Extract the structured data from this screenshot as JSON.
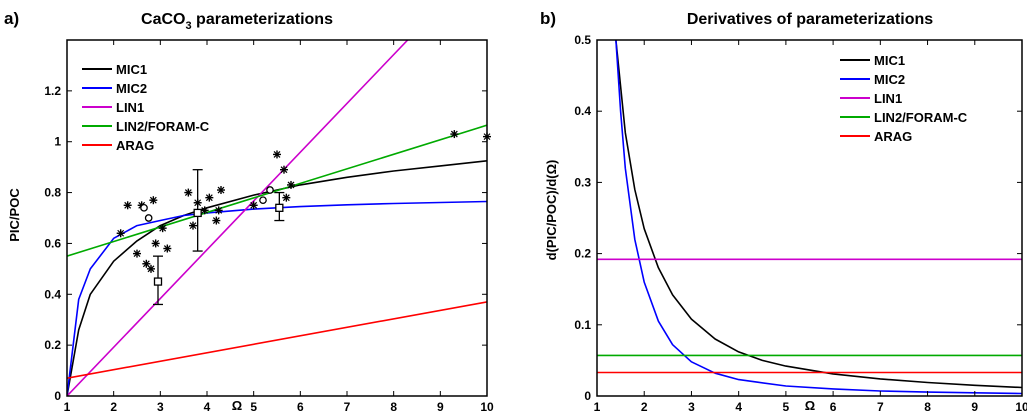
{
  "chart_data": [
    {
      "type": "line",
      "panel_label": "a)",
      "title": "CaCO3 parameterizations",
      "title_main": "CaCO",
      "title_sub": "3",
      "title_rest": " parameterizations",
      "xlabel": "Ω",
      "ylabel": "PIC/POC",
      "xlim": [
        1,
        10
      ],
      "ylim": [
        0,
        1.4
      ],
      "xticks": [
        1,
        2,
        3,
        4,
        5,
        6,
        7,
        8,
        9,
        10
      ],
      "yticks": [
        0,
        0.2,
        0.4,
        0.6,
        0.8,
        1,
        1.2
      ],
      "legend_position": "top-left",
      "series": [
        {
          "name": "MIC1",
          "color": "#000000",
          "x": [
            1,
            1.25,
            1.5,
            2,
            2.5,
            3,
            3.5,
            4,
            5,
            6,
            7,
            8,
            9,
            10
          ],
          "y": [
            0,
            0.26,
            0.4,
            0.53,
            0.61,
            0.67,
            0.71,
            0.74,
            0.79,
            0.83,
            0.86,
            0.885,
            0.905,
            0.925
          ]
        },
        {
          "name": "MIC2",
          "color": "#0000ff",
          "x": [
            1,
            1.25,
            1.5,
            2,
            2.5,
            3,
            3.5,
            4,
            5,
            6,
            7,
            8,
            9,
            10
          ],
          "y": [
            0,
            0.38,
            0.5,
            0.62,
            0.67,
            0.69,
            0.71,
            0.72,
            0.735,
            0.745,
            0.752,
            0.757,
            0.761,
            0.765
          ]
        },
        {
          "name": "LIN1",
          "color": "#cc00cc",
          "x": [
            1,
            8.3
          ],
          "y": [
            0,
            1.4
          ]
        },
        {
          "name": "LIN2/FORAM-C",
          "color": "#00aa00",
          "x": [
            1,
            10
          ],
          "y": [
            0.55,
            1.065
          ]
        },
        {
          "name": "ARAG",
          "color": "#ff0000",
          "x": [
            1,
            10
          ],
          "y": [
            0.07,
            0.37
          ]
        }
      ],
      "stars": [
        {
          "x": 2.15,
          "y": 0.64
        },
        {
          "x": 2.3,
          "y": 0.75
        },
        {
          "x": 2.5,
          "y": 0.56
        },
        {
          "x": 2.6,
          "y": 0.75
        },
        {
          "x": 2.7,
          "y": 0.52
        },
        {
          "x": 2.8,
          "y": 0.5
        },
        {
          "x": 2.85,
          "y": 0.77
        },
        {
          "x": 2.9,
          "y": 0.6
        },
        {
          "x": 3.05,
          "y": 0.66
        },
        {
          "x": 3.15,
          "y": 0.58
        },
        {
          "x": 3.6,
          "y": 0.8
        },
        {
          "x": 3.7,
          "y": 0.67
        },
        {
          "x": 3.8,
          "y": 0.76
        },
        {
          "x": 3.95,
          "y": 0.73
        },
        {
          "x": 4.05,
          "y": 0.78
        },
        {
          "x": 4.2,
          "y": 0.69
        },
        {
          "x": 4.25,
          "y": 0.73
        },
        {
          "x": 4.3,
          "y": 0.81
        },
        {
          "x": 5.0,
          "y": 0.75
        },
        {
          "x": 5.5,
          "y": 0.95
        },
        {
          "x": 5.65,
          "y": 0.89
        },
        {
          "x": 5.7,
          "y": 0.78
        },
        {
          "x": 5.8,
          "y": 0.83
        },
        {
          "x": 9.3,
          "y": 1.03
        },
        {
          "x": 10,
          "y": 1.02
        }
      ],
      "circles": [
        {
          "x": 2.65,
          "y": 0.74
        },
        {
          "x": 2.75,
          "y": 0.7
        },
        {
          "x": 5.2,
          "y": 0.77
        },
        {
          "x": 5.35,
          "y": 0.81
        }
      ],
      "squares_with_error": [
        {
          "x": 2.95,
          "y": 0.45,
          "lo": 0.36,
          "hi": 0.55
        },
        {
          "x": 3.8,
          "y": 0.72,
          "lo": 0.57,
          "hi": 0.89
        },
        {
          "x": 5.55,
          "y": 0.74,
          "lo": 0.69,
          "hi": 0.8
        }
      ]
    },
    {
      "type": "line",
      "panel_label": "b)",
      "title": "Derivatives of parameterizations",
      "xlabel": "Ω",
      "ylabel": "d(PIC/POC)/d(Ω)",
      "xlim": [
        1,
        10
      ],
      "ylim": [
        0,
        0.5
      ],
      "xticks": [
        1,
        2,
        3,
        4,
        5,
        6,
        7,
        8,
        9,
        10
      ],
      "yticks": [
        0,
        0.1,
        0.2,
        0.3,
        0.4,
        0.5
      ],
      "legend_position": "top-right",
      "series": [
        {
          "name": "MIC1",
          "color": "#000000",
          "x": [
            1.4,
            1.6,
            1.8,
            2,
            2.3,
            2.6,
            3,
            3.5,
            4,
            4.5,
            5,
            6,
            7,
            8,
            9,
            10
          ],
          "y": [
            0.5,
            0.37,
            0.29,
            0.235,
            0.18,
            0.142,
            0.108,
            0.08,
            0.062,
            0.05,
            0.042,
            0.031,
            0.024,
            0.019,
            0.015,
            0.012
          ]
        },
        {
          "name": "MIC2",
          "color": "#0000ff",
          "x": [
            1.4,
            1.5,
            1.6,
            1.8,
            2,
            2.3,
            2.6,
            3,
            3.5,
            4,
            5,
            6,
            7,
            8,
            9,
            10
          ],
          "y": [
            0.5,
            0.4,
            0.32,
            0.22,
            0.16,
            0.105,
            0.072,
            0.048,
            0.032,
            0.023,
            0.014,
            0.01,
            0.007,
            0.0055,
            0.0045,
            0.0035
          ]
        },
        {
          "name": "LIN1",
          "color": "#cc00cc",
          "x": [
            1,
            10
          ],
          "y": [
            0.192,
            0.192
          ]
        },
        {
          "name": "LIN2/FORAM-C",
          "color": "#00aa00",
          "x": [
            1,
            10
          ],
          "y": [
            0.057,
            0.057
          ]
        },
        {
          "name": "ARAG",
          "color": "#ff0000",
          "x": [
            1,
            10
          ],
          "y": [
            0.033,
            0.033
          ]
        }
      ]
    }
  ]
}
